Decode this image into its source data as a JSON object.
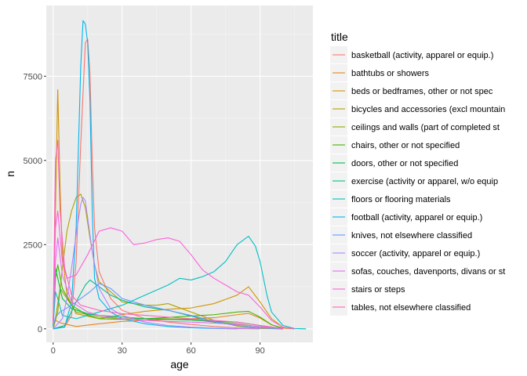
{
  "chart_data": {
    "type": "line",
    "xlabel": "age",
    "ylabel": "n",
    "xlim": [
      -3,
      113
    ],
    "ylim": [
      -400,
      9600
    ],
    "x_ticks": [
      0,
      30,
      60,
      90
    ],
    "y_ticks": [
      0,
      2500,
      5000,
      7500
    ],
    "x_tick_labels": [
      "0",
      "30",
      "60",
      "90"
    ],
    "y_tick_labels": [
      "0",
      "2500",
      "5000",
      "7500"
    ],
    "grid": true,
    "legend_position": "right",
    "legend_title": "title",
    "series": [
      {
        "name": "basketball (activity, apparel or equip.)",
        "color": "#F8766D",
        "points": [
          [
            0,
            0
          ],
          [
            5,
            60
          ],
          [
            8,
            400
          ],
          [
            10,
            2000
          ],
          [
            12,
            5500
          ],
          [
            14,
            8500
          ],
          [
            15,
            8600
          ],
          [
            16,
            7600
          ],
          [
            17,
            5000
          ],
          [
            18,
            3000
          ],
          [
            20,
            1700
          ],
          [
            25,
            900
          ],
          [
            30,
            550
          ],
          [
            40,
            300
          ],
          [
            50,
            200
          ],
          [
            60,
            130
          ],
          [
            70,
            70
          ],
          [
            80,
            30
          ],
          [
            90,
            10
          ],
          [
            100,
            0
          ]
        ]
      },
      {
        "name": "bathtubs or showers",
        "color": "#E7851E",
        "points": [
          [
            0,
            20
          ],
          [
            1,
            250
          ],
          [
            3,
            180
          ],
          [
            10,
            70
          ],
          [
            20,
            150
          ],
          [
            30,
            220
          ],
          [
            40,
            250
          ],
          [
            50,
            280
          ],
          [
            60,
            300
          ],
          [
            70,
            330
          ],
          [
            80,
            420
          ],
          [
            85,
            460
          ],
          [
            90,
            320
          ],
          [
            95,
            120
          ],
          [
            100,
            20
          ],
          [
            105,
            0
          ]
        ]
      },
      {
        "name": "beds or bedframes, other or not spec",
        "color": "#D09400",
        "points": [
          [
            0,
            200
          ],
          [
            1,
            3500
          ],
          [
            2,
            7100
          ],
          [
            3,
            4200
          ],
          [
            4,
            2200
          ],
          [
            6,
            1000
          ],
          [
            10,
            450
          ],
          [
            20,
            300
          ],
          [
            30,
            420
          ],
          [
            40,
            520
          ],
          [
            50,
            580
          ],
          [
            60,
            620
          ],
          [
            70,
            750
          ],
          [
            80,
            1000
          ],
          [
            85,
            1250
          ],
          [
            90,
            800
          ],
          [
            95,
            300
          ],
          [
            100,
            50
          ],
          [
            105,
            0
          ]
        ]
      },
      {
        "name": "bicycles and accessories (excl mountain",
        "color": "#B2A100",
        "points": [
          [
            0,
            0
          ],
          [
            2,
            500
          ],
          [
            4,
            1800
          ],
          [
            6,
            2900
          ],
          [
            8,
            3500
          ],
          [
            10,
            3900
          ],
          [
            12,
            4000
          ],
          [
            14,
            3600
          ],
          [
            16,
            2700
          ],
          [
            18,
            1900
          ],
          [
            20,
            1400
          ],
          [
            30,
            800
          ],
          [
            40,
            700
          ],
          [
            45,
            700
          ],
          [
            50,
            750
          ],
          [
            60,
            500
          ],
          [
            70,
            250
          ],
          [
            80,
            80
          ],
          [
            90,
            20
          ],
          [
            100,
            0
          ]
        ]
      },
      {
        "name": "ceilings and walls (part of completed st",
        "color": "#89AC00",
        "points": [
          [
            0,
            50
          ],
          [
            1,
            300
          ],
          [
            3,
            1200
          ],
          [
            5,
            1000
          ],
          [
            10,
            500
          ],
          [
            20,
            350
          ],
          [
            30,
            300
          ],
          [
            40,
            300
          ],
          [
            50,
            300
          ],
          [
            60,
            280
          ],
          [
            70,
            200
          ],
          [
            80,
            150
          ],
          [
            90,
            60
          ],
          [
            100,
            5
          ]
        ]
      },
      {
        "name": "chairs, other or not specified",
        "color": "#45B500",
        "points": [
          [
            0,
            80
          ],
          [
            1,
            1500
          ],
          [
            2,
            1900
          ],
          [
            4,
            1200
          ],
          [
            8,
            700
          ],
          [
            15,
            400
          ],
          [
            20,
            300
          ],
          [
            30,
            280
          ],
          [
            40,
            300
          ],
          [
            50,
            340
          ],
          [
            60,
            380
          ],
          [
            70,
            420
          ],
          [
            80,
            500
          ],
          [
            85,
            520
          ],
          [
            90,
            350
          ],
          [
            95,
            120
          ],
          [
            100,
            20
          ]
        ]
      },
      {
        "name": "doors, other or not specified",
        "color": "#00BC51",
        "points": [
          [
            0,
            80
          ],
          [
            1,
            1800
          ],
          [
            2,
            1500
          ],
          [
            4,
            900
          ],
          [
            8,
            600
          ],
          [
            15,
            450
          ],
          [
            20,
            400
          ],
          [
            30,
            350
          ],
          [
            40,
            300
          ],
          [
            50,
            280
          ],
          [
            60,
            260
          ],
          [
            70,
            220
          ],
          [
            80,
            200
          ],
          [
            90,
            100
          ],
          [
            100,
            10
          ]
        ]
      },
      {
        "name": "exercise (activity or apparel, w/o equip",
        "color": "#00C08B",
        "points": [
          [
            0,
            0
          ],
          [
            5,
            100
          ],
          [
            10,
            800
          ],
          [
            14,
            1300
          ],
          [
            16,
            1450
          ],
          [
            20,
            1250
          ],
          [
            25,
            1000
          ],
          [
            30,
            850
          ],
          [
            40,
            650
          ],
          [
            50,
            550
          ],
          [
            60,
            380
          ],
          [
            70,
            200
          ],
          [
            80,
            100
          ],
          [
            90,
            30
          ],
          [
            100,
            0
          ]
        ]
      },
      {
        "name": "floors or flooring materials",
        "color": "#00BFC4",
        "points": [
          [
            0,
            100
          ],
          [
            1,
            1100
          ],
          [
            2,
            900
          ],
          [
            4,
            400
          ],
          [
            10,
            300
          ],
          [
            20,
            500
          ],
          [
            30,
            700
          ],
          [
            40,
            1000
          ],
          [
            50,
            1300
          ],
          [
            55,
            1500
          ],
          [
            60,
            1450
          ],
          [
            65,
            1550
          ],
          [
            70,
            1700
          ],
          [
            75,
            2000
          ],
          [
            80,
            2500
          ],
          [
            85,
            2750
          ],
          [
            88,
            2450
          ],
          [
            90,
            2000
          ],
          [
            93,
            1000
          ],
          [
            95,
            500
          ],
          [
            100,
            100
          ],
          [
            105,
            10
          ],
          [
            110,
            0
          ]
        ]
      },
      {
        "name": "football (activity, apparel or equip.)",
        "color": "#00B4EF",
        "points": [
          [
            0,
            0
          ],
          [
            5,
            50
          ],
          [
            8,
            800
          ],
          [
            10,
            3000
          ],
          [
            12,
            7800
          ],
          [
            13,
            9150
          ],
          [
            14,
            9050
          ],
          [
            15,
            8500
          ],
          [
            16,
            6800
          ],
          [
            17,
            3500
          ],
          [
            18,
            1500
          ],
          [
            20,
            900
          ],
          [
            25,
            500
          ],
          [
            30,
            300
          ],
          [
            40,
            150
          ],
          [
            50,
            70
          ],
          [
            60,
            30
          ],
          [
            70,
            10
          ],
          [
            80,
            0
          ]
        ]
      },
      {
        "name": "knives, not elsewhere classified",
        "color": "#619CFF",
        "points": [
          [
            0,
            60
          ],
          [
            1,
            350
          ],
          [
            3,
            500
          ],
          [
            8,
            700
          ],
          [
            12,
            900
          ],
          [
            16,
            1100
          ],
          [
            20,
            1350
          ],
          [
            25,
            1200
          ],
          [
            30,
            900
          ],
          [
            40,
            700
          ],
          [
            50,
            550
          ],
          [
            60,
            400
          ],
          [
            70,
            220
          ],
          [
            80,
            100
          ],
          [
            90,
            30
          ],
          [
            100,
            5
          ]
        ]
      },
      {
        "name": "soccer (activity, apparel or equip.)",
        "color": "#AE87FF",
        "points": [
          [
            0,
            0
          ],
          [
            4,
            300
          ],
          [
            6,
            900
          ],
          [
            8,
            1800
          ],
          [
            10,
            2800
          ],
          [
            12,
            3700
          ],
          [
            13,
            3900
          ],
          [
            14,
            3800
          ],
          [
            15,
            3300
          ],
          [
            17,
            2300
          ],
          [
            20,
            1200
          ],
          [
            25,
            600
          ],
          [
            30,
            400
          ],
          [
            40,
            200
          ],
          [
            50,
            100
          ],
          [
            60,
            50
          ],
          [
            70,
            20
          ],
          [
            80,
            5
          ],
          [
            90,
            0
          ]
        ]
      },
      {
        "name": "sofas, couches, davenports, divans or st",
        "color": "#E76BF3",
        "points": [
          [
            0,
            150
          ],
          [
            1,
            2000
          ],
          [
            2,
            2700
          ],
          [
            4,
            1600
          ],
          [
            8,
            800
          ],
          [
            15,
            500
          ],
          [
            20,
            400
          ],
          [
            30,
            300
          ],
          [
            40,
            250
          ],
          [
            50,
            220
          ],
          [
            60,
            200
          ],
          [
            70,
            170
          ],
          [
            80,
            130
          ],
          [
            90,
            70
          ],
          [
            100,
            5
          ]
        ]
      },
      {
        "name": "stairs or steps",
        "color": "#FA62DB",
        "points": [
          [
            0,
            200
          ],
          [
            1,
            3000
          ],
          [
            2,
            3500
          ],
          [
            4,
            2000
          ],
          [
            6,
            1500
          ],
          [
            10,
            1600
          ],
          [
            15,
            2200
          ],
          [
            20,
            2900
          ],
          [
            25,
            3000
          ],
          [
            30,
            2900
          ],
          [
            35,
            2500
          ],
          [
            40,
            2550
          ],
          [
            45,
            2650
          ],
          [
            50,
            2700
          ],
          [
            55,
            2600
          ],
          [
            60,
            2200
          ],
          [
            65,
            1750
          ],
          [
            70,
            1500
          ],
          [
            75,
            1300
          ],
          [
            80,
            1100
          ],
          [
            85,
            1000
          ],
          [
            90,
            650
          ],
          [
            95,
            250
          ],
          [
            100,
            50
          ],
          [
            105,
            0
          ]
        ]
      },
      {
        "name": "tables, not elsewhere classified",
        "color": "#FF62BC",
        "points": [
          [
            0,
            300
          ],
          [
            1,
            5000
          ],
          [
            2,
            5600
          ],
          [
            3,
            3500
          ],
          [
            5,
            1800
          ],
          [
            8,
            1000
          ],
          [
            12,
            700
          ],
          [
            20,
            550
          ],
          [
            30,
            450
          ],
          [
            40,
            400
          ],
          [
            50,
            350
          ],
          [
            60,
            300
          ],
          [
            70,
            250
          ],
          [
            80,
            200
          ],
          [
            90,
            100
          ],
          [
            100,
            10
          ]
        ]
      }
    ]
  }
}
